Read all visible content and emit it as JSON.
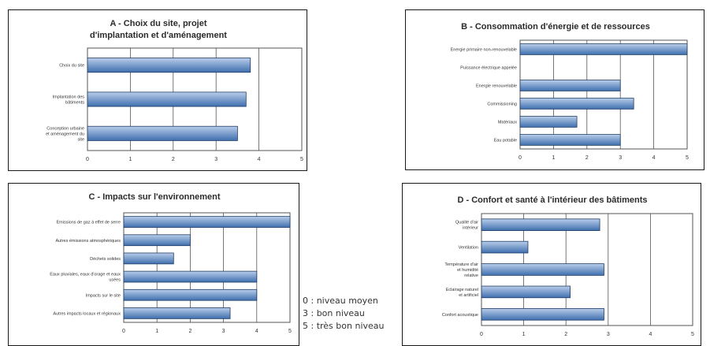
{
  "colors": {
    "bar_light": "#b9cdea",
    "bar_dark": "#3f6fae",
    "title_color": "#2b2b2b",
    "grid_color": "#555555"
  },
  "chart_data": [
    {
      "type": "bar",
      "orientation": "horizontal",
      "title": "A - Choix du site, projet d'implantation et d'aménagement",
      "categories": [
        "Choix du site",
        "Implantation des bâtiments",
        "Conception urbaine et aménagement du site"
      ],
      "values": [
        3.8,
        3.7,
        3.5
      ],
      "xlim": [
        0,
        5
      ],
      "ticks": [
        "0",
        "1",
        "2",
        "3",
        "4",
        "5"
      ],
      "grid": true
    },
    {
      "type": "bar",
      "orientation": "horizontal",
      "title": "B - Consommation d'énergie et de ressources",
      "categories": [
        "Energie primaire non-renouvelable",
        "Puissance électrique appelée",
        "Energie renouvelable",
        "Commissioning",
        "Matériaux",
        "Eau potable"
      ],
      "values": [
        5,
        0,
        3,
        3.4,
        1.7,
        3
      ],
      "xlim": [
        0,
        5
      ],
      "ticks": [
        "0",
        "1",
        "2",
        "3",
        "4",
        "5"
      ],
      "grid": true
    },
    {
      "type": "bar",
      "orientation": "horizontal",
      "title": "C - Impacts sur l'environnement",
      "categories": [
        "Emissions de gaz à effet de serre",
        "Autres émissions atmosphériques",
        "Déchets solides",
        "Eaux pluviales, eaux d'orage et eaux usées",
        "Impacts sur le site",
        "Autres impacts locaux et régionaux"
      ],
      "values": [
        5,
        2,
        1.5,
        4,
        4,
        3.2
      ],
      "xlim": [
        0,
        5
      ],
      "ticks": [
        "0",
        "1",
        "2",
        "3",
        "4",
        "5"
      ],
      "grid": true
    },
    {
      "type": "bar",
      "orientation": "horizontal",
      "title": "D - Confort et santé à l'intérieur des bâtiments",
      "categories": [
        "Qualité d'air intérieur",
        "Ventilation",
        "Température d'air et humidité relative",
        "Eclairage naturel et artificiel",
        "Confort acoustique"
      ],
      "values": [
        2.8,
        1.1,
        2.9,
        2.1,
        2.9
      ],
      "xlim": [
        0,
        5
      ],
      "ticks": [
        "0",
        "1",
        "2",
        "3",
        "4",
        "5"
      ],
      "grid": true
    }
  ],
  "legend": [
    "0 : niveau moyen",
    "3 : bon niveau",
    "5 : très bon niveau"
  ]
}
